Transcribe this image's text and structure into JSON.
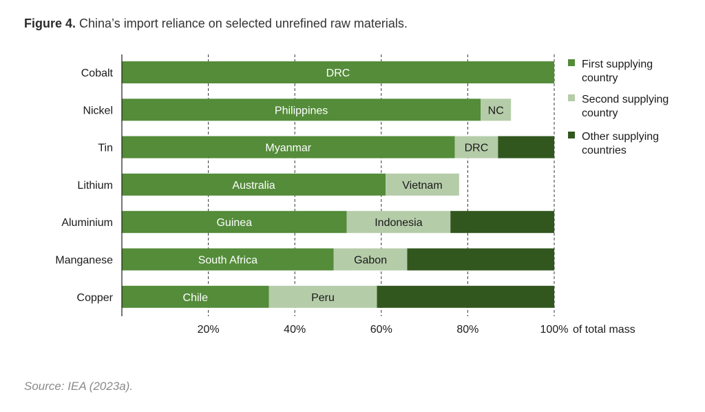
{
  "figure": {
    "label": "Figure 4.",
    "caption": "China’s import reliance on selected unrefined raw materials.",
    "source": "Source: IEA (2023a)."
  },
  "chart_data": {
    "type": "bar",
    "orientation": "horizontal",
    "stacked": true,
    "categories": [
      "Cobalt",
      "Nickel",
      "Tin",
      "Lithium",
      "Aluminium",
      "Manganese",
      "Copper"
    ],
    "series": [
      {
        "name": "First supplying country",
        "values": [
          100,
          83,
          77,
          61,
          52,
          49,
          34
        ],
        "labels": [
          "DRC",
          "Philippines",
          "Myanmar",
          "Australia",
          "Guinea",
          "South Africa",
          "Chile"
        ]
      },
      {
        "name": "Second supplying country",
        "values": [
          0,
          7,
          10,
          17,
          24,
          17,
          25
        ],
        "labels": [
          "",
          "NC",
          "DRC",
          "Vietnam",
          "Indonesia",
          "Gabon",
          "Peru"
        ]
      },
      {
        "name": "Other supplying countries",
        "values": [
          0,
          0,
          13,
          0,
          24,
          34,
          41
        ],
        "labels": [
          "",
          "",
          "",
          "",
          "",
          "",
          ""
        ]
      }
    ],
    "colors": [
      "#548c3a",
      "#b5cca9",
      "#31571e"
    ],
    "label_colors": [
      "#ffffff",
      "#1a1a1a",
      "#ffffff"
    ],
    "xlim": [
      0,
      100
    ],
    "xticks": [
      20,
      40,
      60,
      80,
      100
    ],
    "xtick_labels": [
      "20%",
      "40%",
      "60%",
      "80%",
      "100%"
    ],
    "xlabel": "of total mass",
    "grid": "vertical-dashed",
    "legend": "right",
    "legend_entries": [
      [
        "First supplying",
        "country"
      ],
      [
        "Second supplying",
        "country"
      ],
      [
        "Other supplying",
        "countries"
      ]
    ]
  }
}
